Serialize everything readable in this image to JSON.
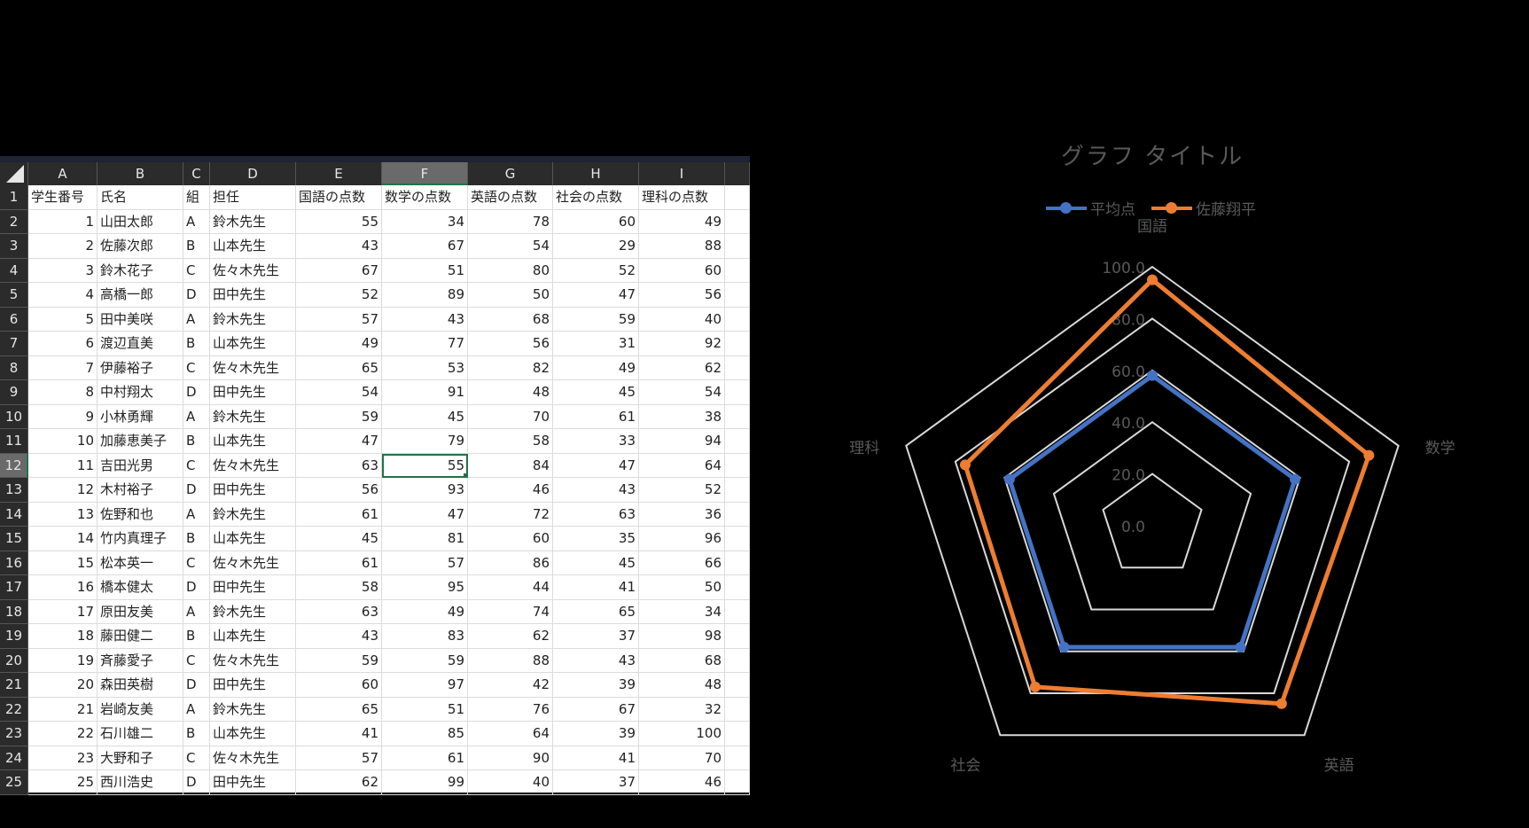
{
  "sheet": {
    "columns": [
      "A",
      "B",
      "C",
      "D",
      "E",
      "F",
      "G",
      "H",
      "I",
      ""
    ],
    "selected_column": "F",
    "selected_row": 12,
    "selected_cell": "F12",
    "rows": [
      {
        "n": "1",
        "cells": [
          "学生番号",
          "氏名",
          "組",
          "担任",
          "国語の点数",
          "数学の点数",
          "英語の点数",
          "社会の点数",
          "理科の点数",
          ""
        ]
      },
      {
        "n": "2",
        "cells": [
          "1",
          "山田太郎",
          "A",
          "鈴木先生",
          "55",
          "34",
          "78",
          "60",
          "49",
          ""
        ]
      },
      {
        "n": "3",
        "cells": [
          "2",
          "佐藤次郎",
          "B",
          "山本先生",
          "43",
          "67",
          "54",
          "29",
          "88",
          ""
        ]
      },
      {
        "n": "4",
        "cells": [
          "3",
          "鈴木花子",
          "C",
          "佐々木先生",
          "67",
          "51",
          "80",
          "52",
          "60",
          ""
        ]
      },
      {
        "n": "5",
        "cells": [
          "4",
          "高橋一郎",
          "D",
          "田中先生",
          "52",
          "89",
          "50",
          "47",
          "56",
          ""
        ]
      },
      {
        "n": "6",
        "cells": [
          "5",
          "田中美咲",
          "A",
          "鈴木先生",
          "57",
          "43",
          "68",
          "59",
          "40",
          ""
        ]
      },
      {
        "n": "7",
        "cells": [
          "6",
          "渡辺直美",
          "B",
          "山本先生",
          "49",
          "77",
          "56",
          "31",
          "92",
          ""
        ]
      },
      {
        "n": "8",
        "cells": [
          "7",
          "伊藤裕子",
          "C",
          "佐々木先生",
          "65",
          "53",
          "82",
          "49",
          "62",
          ""
        ]
      },
      {
        "n": "9",
        "cells": [
          "8",
          "中村翔太",
          "D",
          "田中先生",
          "54",
          "91",
          "48",
          "45",
          "54",
          ""
        ]
      },
      {
        "n": "10",
        "cells": [
          "9",
          "小林勇輝",
          "A",
          "鈴木先生",
          "59",
          "45",
          "70",
          "61",
          "38",
          ""
        ]
      },
      {
        "n": "11",
        "cells": [
          "10",
          "加藤恵美子",
          "B",
          "山本先生",
          "47",
          "79",
          "58",
          "33",
          "94",
          ""
        ]
      },
      {
        "n": "12",
        "cells": [
          "11",
          "吉田光男",
          "C",
          "佐々木先生",
          "63",
          "55",
          "84",
          "47",
          "64",
          ""
        ]
      },
      {
        "n": "13",
        "cells": [
          "12",
          "木村裕子",
          "D",
          "田中先生",
          "56",
          "93",
          "46",
          "43",
          "52",
          ""
        ]
      },
      {
        "n": "14",
        "cells": [
          "13",
          "佐野和也",
          "A",
          "鈴木先生",
          "61",
          "47",
          "72",
          "63",
          "36",
          ""
        ]
      },
      {
        "n": "15",
        "cells": [
          "14",
          "竹内真理子",
          "B",
          "山本先生",
          "45",
          "81",
          "60",
          "35",
          "96",
          ""
        ]
      },
      {
        "n": "16",
        "cells": [
          "15",
          "松本英一",
          "C",
          "佐々木先生",
          "61",
          "57",
          "86",
          "45",
          "66",
          ""
        ]
      },
      {
        "n": "17",
        "cells": [
          "16",
          "橋本健太",
          "D",
          "田中先生",
          "58",
          "95",
          "44",
          "41",
          "50",
          ""
        ]
      },
      {
        "n": "18",
        "cells": [
          "17",
          "原田友美",
          "A",
          "鈴木先生",
          "63",
          "49",
          "74",
          "65",
          "34",
          ""
        ]
      },
      {
        "n": "19",
        "cells": [
          "18",
          "藤田健二",
          "B",
          "山本先生",
          "43",
          "83",
          "62",
          "37",
          "98",
          ""
        ]
      },
      {
        "n": "20",
        "cells": [
          "19",
          "斉藤愛子",
          "C",
          "佐々木先生",
          "59",
          "59",
          "88",
          "43",
          "68",
          ""
        ]
      },
      {
        "n": "21",
        "cells": [
          "20",
          "森田英樹",
          "D",
          "田中先生",
          "60",
          "97",
          "42",
          "39",
          "48",
          ""
        ]
      },
      {
        "n": "22",
        "cells": [
          "21",
          "岩崎友美",
          "A",
          "鈴木先生",
          "65",
          "51",
          "76",
          "67",
          "32",
          ""
        ]
      },
      {
        "n": "23",
        "cells": [
          "22",
          "石川雄二",
          "B",
          "山本先生",
          "41",
          "85",
          "64",
          "39",
          "100",
          ""
        ]
      },
      {
        "n": "24",
        "cells": [
          "23",
          "大野和子",
          "C",
          "佐々木先生",
          "57",
          "61",
          "90",
          "41",
          "70",
          ""
        ]
      },
      {
        "n": "25",
        "cells": [
          "25",
          "西川浩史",
          "D",
          "田中先生",
          "62",
          "99",
          "40",
          "37",
          "46",
          ""
        ]
      }
    ]
  },
  "chart": {
    "title": "グラフ タイトル",
    "legend": [
      {
        "label": "平均点",
        "color": "#4472C4"
      },
      {
        "label": "佐藤翔平",
        "color": "#ED7D31"
      }
    ]
  },
  "chart_data": {
    "type": "radar",
    "title": "グラフ タイトル",
    "categories": [
      "国語",
      "数学",
      "英語",
      "社会",
      "理科"
    ],
    "series": [
      {
        "name": "平均点",
        "color": "#4472C4",
        "values": [
          58,
          58,
          58,
          58,
          58
        ]
      },
      {
        "name": "佐藤翔平",
        "color": "#ED7D31",
        "values": [
          95,
          88,
          85,
          77,
          76
        ]
      }
    ],
    "axis_ticks": [
      "0.0",
      "20.0",
      "40.0",
      "60.0",
      "80.0",
      "100.0"
    ],
    "rings": [
      20,
      40,
      60,
      80,
      100
    ],
    "rlim": [
      0,
      100
    ],
    "legend_position": "top",
    "grid_color": "#D9D9D9",
    "label_color": "#595959"
  }
}
